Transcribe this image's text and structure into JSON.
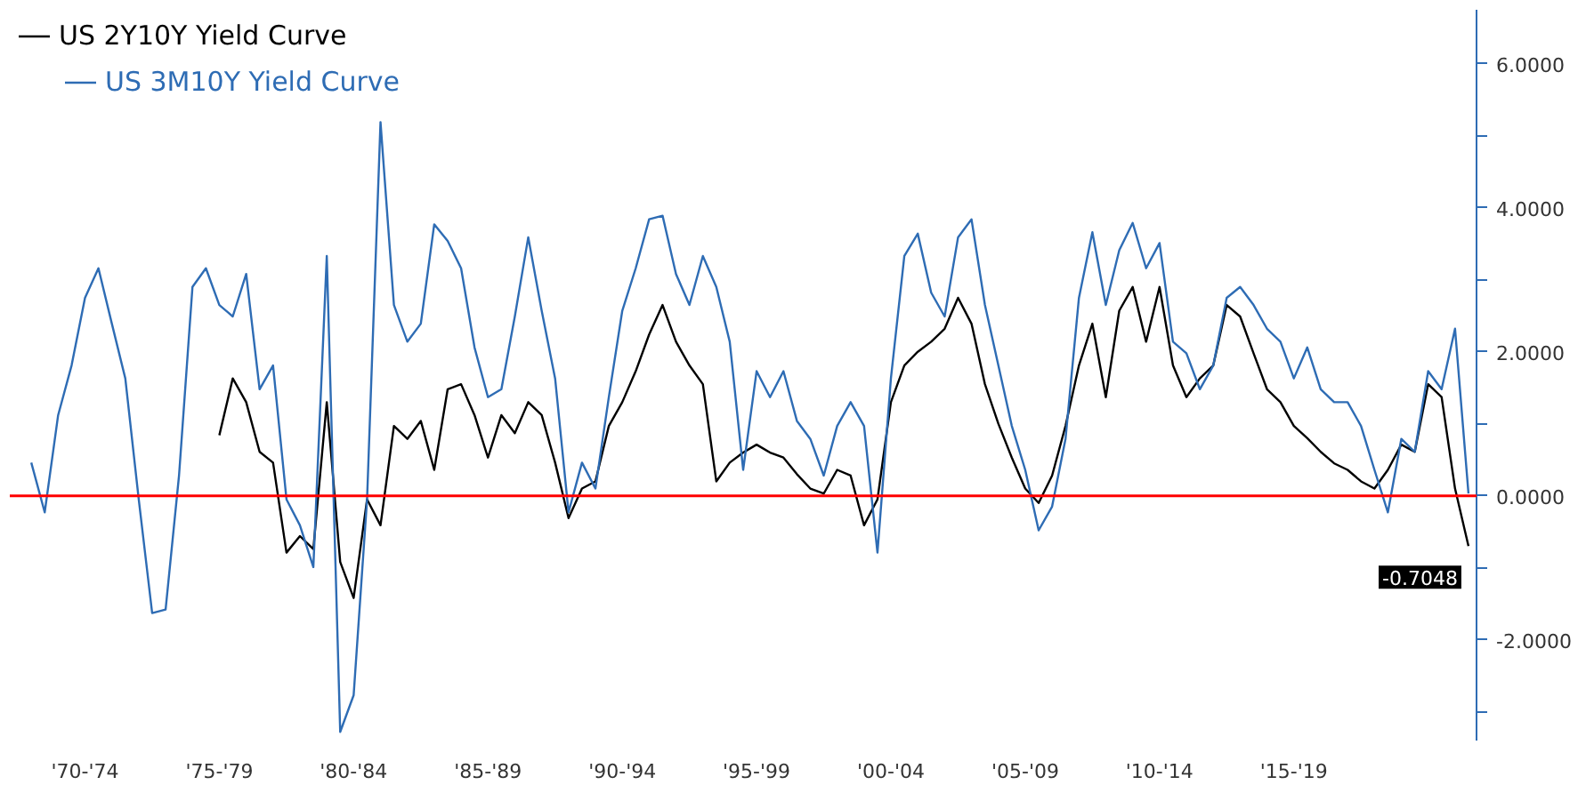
{
  "chart_data": {
    "type": "line",
    "categories": [
      null,
      null,
      null,
      null,
      null,
      "'70-'74",
      null,
      null,
      null,
      null,
      null,
      null,
      null,
      null,
      null,
      "'75-'79",
      null,
      null,
      null,
      null,
      null,
      null,
      null,
      null,
      null,
      "'80-'84",
      null,
      null,
      null,
      null,
      null,
      null,
      null,
      null,
      null,
      "'85-'89",
      null,
      null,
      null,
      null,
      null,
      null,
      null,
      null,
      null,
      "'90-'94",
      null,
      null,
      null,
      null,
      null,
      null,
      null,
      null,
      null,
      "'95-'99",
      null,
      null,
      null,
      null,
      null,
      null,
      null,
      null,
      null,
      "'00-'04",
      null,
      null,
      null,
      null,
      null,
      null,
      null,
      null,
      null,
      "'05-'09",
      null,
      null,
      null,
      null,
      null,
      null,
      null,
      null,
      null,
      "'10-'14",
      null,
      null,
      null,
      null,
      null,
      null,
      null,
      null,
      null,
      "'15-'19",
      null,
      null,
      null,
      null,
      null,
      null,
      null,
      null,
      null,
      null,
      null,
      null,
      null
    ],
    "series": [
      {
        "name": "US 2Y10Y Yield Curve",
        "color": "#000000",
        "values": [
          null,
          null,
          null,
          null,
          null,
          null,
          null,
          null,
          null,
          null,
          null,
          null,
          null,
          null,
          null,
          0.84,
          1.63,
          1.3,
          0.61,
          0.46,
          -0.79,
          -0.56,
          -0.74,
          1.3,
          -0.92,
          -1.42,
          -0.05,
          -0.41,
          0.97,
          0.79,
          1.04,
          0.36,
          1.48,
          1.55,
          1.12,
          0.53,
          1.12,
          0.87,
          1.3,
          1.12,
          0.46,
          -0.31,
          0.1,
          0.2,
          0.97,
          1.3,
          1.73,
          2.24,
          2.65,
          2.14,
          1.81,
          1.55,
          0.2,
          0.46,
          0.6,
          0.71,
          0.6,
          0.53,
          0.3,
          0.1,
          0.03,
          0.36,
          0.28,
          -0.41,
          -0.05,
          1.3,
          1.81,
          2.0,
          2.14,
          2.32,
          2.75,
          2.39,
          1.55,
          1.0,
          0.53,
          0.1,
          -0.1,
          0.28,
          0.97,
          1.81,
          2.39,
          1.37,
          2.57,
          2.9,
          2.14,
          2.9,
          1.81,
          1.37,
          1.63,
          1.81,
          2.65,
          2.49,
          1.98,
          1.48,
          1.3,
          0.97,
          0.8,
          0.61,
          0.45,
          0.36,
          0.2,
          0.1,
          0.36,
          0.71,
          0.61,
          1.55,
          1.37,
          0.1,
          -0.7
        ]
      },
      {
        "name": "US 3M10Y Yield Curve",
        "color": "#2e6cb4",
        "values": [
          null,
          0.46,
          -0.23,
          1.12,
          1.81,
          2.75,
          3.16,
          2.39,
          1.63,
          -0.05,
          -1.63,
          -1.58,
          0.28,
          2.9,
          3.16,
          2.65,
          2.49,
          3.08,
          1.48,
          1.81,
          -0.05,
          -0.41,
          -0.99,
          3.33,
          -3.28,
          -2.77,
          -0.05,
          5.19,
          2.65,
          2.14,
          2.39,
          3.77,
          3.54,
          3.16,
          2.06,
          1.37,
          1.48,
          2.49,
          3.59,
          2.57,
          1.63,
          -0.23,
          0.46,
          0.1,
          1.37,
          2.57,
          3.16,
          3.84,
          3.89,
          3.08,
          2.65,
          3.33,
          2.9,
          2.14,
          0.36,
          1.73,
          1.37,
          1.73,
          1.04,
          0.79,
          0.28,
          0.97,
          1.3,
          0.97,
          -0.79,
          1.63,
          3.33,
          3.64,
          2.82,
          2.49,
          3.59,
          3.84,
          2.65,
          1.81,
          0.97,
          0.36,
          -0.48,
          -0.15,
          0.79,
          2.75,
          3.66,
          2.65,
          3.41,
          3.79,
          3.16,
          3.51,
          2.14,
          1.98,
          1.48,
          1.81,
          2.75,
          2.9,
          2.65,
          2.32,
          2.14,
          1.63,
          2.06,
          1.48,
          1.3,
          1.3,
          0.97,
          0.36,
          -0.23,
          0.79,
          0.61,
          1.73,
          1.48,
          2.32,
          0.03
        ]
      }
    ],
    "ylim": [
      -3.4,
      6.75
    ],
    "yticks": [
      {
        "value": -3,
        "label": null
      },
      {
        "value": -2,
        "label": "-2.0000"
      },
      {
        "value": -1,
        "label": null
      },
      {
        "value": 0,
        "label": "0.0000"
      },
      {
        "value": 1,
        "label": null
      },
      {
        "value": 2,
        "label": "2.0000"
      },
      {
        "value": 3,
        "label": null
      },
      {
        "value": 4,
        "label": "4.0000"
      },
      {
        "value": 5,
        "label": null
      },
      {
        "value": 6,
        "label": "6.0000"
      }
    ],
    "ref_lines": [
      {
        "axis": "y",
        "value": 0,
        "color": "#ff0000"
      }
    ],
    "annotations": [
      "-0.7048"
    ],
    "legend": "top left",
    "grid": false,
    "marker": "none",
    "line_style": "solid"
  }
}
